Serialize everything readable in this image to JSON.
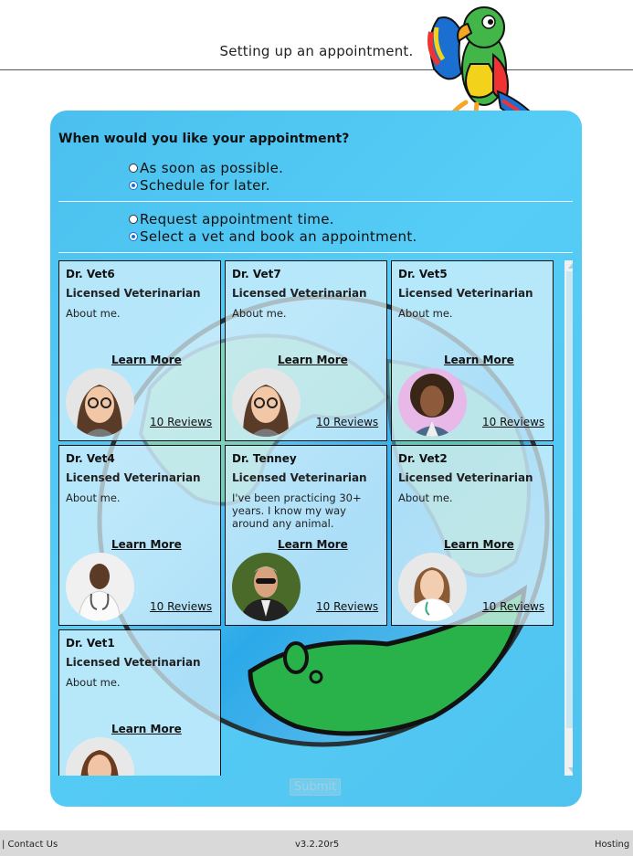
{
  "header": {
    "title": "Setting up an appointment."
  },
  "form": {
    "question": "When would you like your appointment?",
    "timing_options": [
      {
        "label": "As soon as possible.",
        "checked": false
      },
      {
        "label": "Schedule for later.",
        "checked": true
      }
    ],
    "mode_options": [
      {
        "label": "Request appointment time.",
        "checked": false
      },
      {
        "label": "Select a vet and book an appointment.",
        "checked": true
      }
    ],
    "submit_label": "Submit"
  },
  "vets": [
    {
      "name": "Dr. Vet6",
      "role": "Licensed Veterinarian",
      "about": "About me.",
      "learn": "Learn More",
      "reviews": "10 Reviews",
      "photo": "woman-glasses-photo"
    },
    {
      "name": "Dr. Vet7",
      "role": "Licensed Veterinarian",
      "about": "About me.",
      "learn": "Learn More",
      "reviews": "10 Reviews",
      "photo": "woman-glasses-photo"
    },
    {
      "name": "Dr. Vet5",
      "role": "Licensed Veterinarian",
      "about": "About me.",
      "learn": "Learn More",
      "reviews": "10 Reviews",
      "photo": "woman-curly-hair-photo"
    },
    {
      "name": "Dr. Vet4",
      "role": "Licensed Veterinarian",
      "about": "About me.",
      "learn": "Learn More",
      "reviews": "10 Reviews",
      "photo": "doctor-stethoscope-photo"
    },
    {
      "name": "Dr. Tenney",
      "role": "Licensed Veterinarian",
      "about": "I've been practicing 30+ years. I know my way around any animal.",
      "learn": "Learn More",
      "reviews": "10 Reviews",
      "photo": "man-sunglasses-photo"
    },
    {
      "name": "Dr. Vet2",
      "role": "Licensed Veterinarian",
      "about": "About me.",
      "learn": "Learn More",
      "reviews": "10 Reviews",
      "photo": "woman-doctor-photo"
    },
    {
      "name": "Dr. Vet1",
      "role": "Licensed Veterinarian",
      "about": "About me.",
      "learn": "Learn More",
      "reviews": "",
      "photo": "woman-doctor-photo"
    }
  ],
  "footer": {
    "contact": "| Contact Us",
    "version": "v3.2.20r5",
    "hosting": "Hosting &"
  },
  "colors": {
    "panel": "#4fc3f0",
    "card": "#dcf2fc",
    "globe_ocean": "#1a9be0",
    "globe_land": "#2ab24a"
  }
}
